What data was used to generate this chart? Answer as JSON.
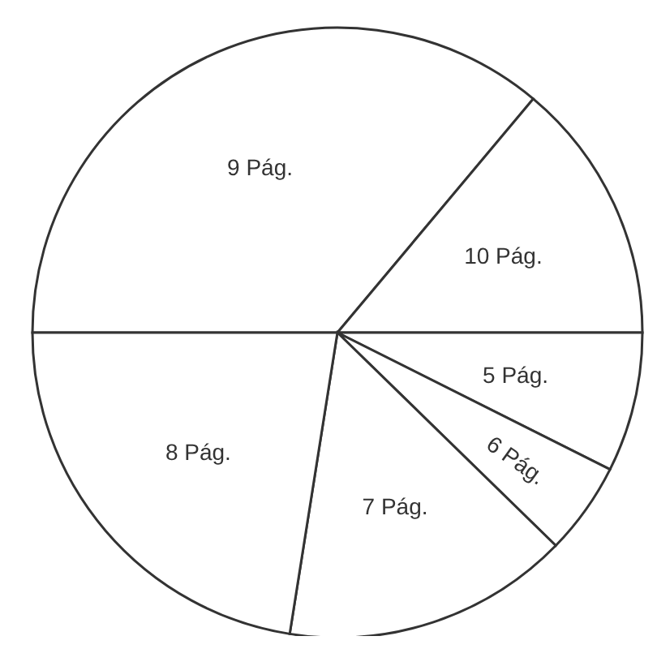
{
  "chart_data": {
    "type": "pie",
    "categories": [
      "9 Pág.",
      "10 Pág.",
      "5 Pág.",
      "6 Pág.",
      "7 Pág.",
      "8 Pág."
    ],
    "values": [
      36.1,
      13.9,
      7.4,
      4.9,
      15.2,
      22.5
    ],
    "colors": [
      "#ffffff",
      "#ffffff",
      "#ffffff",
      "#ffffff",
      "#ffffff",
      "#ffffff"
    ]
  }
}
